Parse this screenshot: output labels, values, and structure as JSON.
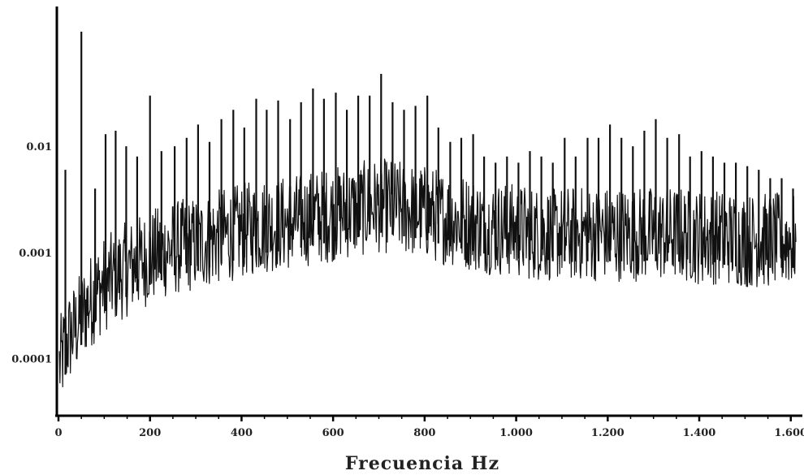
{
  "chart_data": {
    "type": "line",
    "title": "",
    "xlabel": "Frecuencia Hz",
    "ylabel": "",
    "xlim": [
      0,
      1620
    ],
    "ylim": [
      3e-05,
      0.2
    ],
    "yscale": "log",
    "grid": false,
    "xticks": [
      {
        "value": 0,
        "label": "0"
      },
      {
        "value": 200,
        "label": "200"
      },
      {
        "value": 400,
        "label": "400"
      },
      {
        "value": 600,
        "label": "600"
      },
      {
        "value": 800,
        "label": "800"
      },
      {
        "value": 1000,
        "label": "1.000"
      },
      {
        "value": 1200,
        "label": "1.200"
      },
      {
        "value": 1400,
        "label": "1.400"
      },
      {
        "value": 1600,
        "label": "1.600"
      }
    ],
    "yticks": [
      {
        "value": 0.01,
        "label": "0.01"
      },
      {
        "value": 0.001,
        "label": "0.001"
      },
      {
        "value": 0.0001,
        "label": "0.0001"
      }
    ],
    "baseline": {
      "x": [
        0,
        20,
        40,
        60,
        80,
        100,
        150,
        200,
        250,
        300,
        350,
        400,
        450,
        500,
        550,
        600,
        650,
        700,
        750,
        800,
        850,
        900,
        950,
        1000,
        1050,
        1100,
        1150,
        1200,
        1250,
        1300,
        1350,
        1400,
        1450,
        1500,
        1550,
        1600
      ],
      "y": [
        8e-05,
        0.00015,
        0.0002,
        0.0003,
        0.0004,
        0.0005,
        0.0007,
        0.0009,
        0.0011,
        0.0012,
        0.0014,
        0.0016,
        0.0018,
        0.0019,
        0.0021,
        0.0023,
        0.0025,
        0.0028,
        0.0026,
        0.0024,
        0.0021,
        0.0019,
        0.0017,
        0.0016,
        0.0015,
        0.0015,
        0.0015,
        0.0015,
        0.0015,
        0.0015,
        0.0015,
        0.0014,
        0.0014,
        0.0013,
        0.0013,
        0.0013
      ]
    },
    "peaks": {
      "x": [
        15,
        50,
        80,
        103,
        125,
        148,
        172,
        200,
        225,
        254,
        280,
        305,
        330,
        356,
        382,
        406,
        432,
        455,
        480,
        506,
        530,
        556,
        580,
        606,
        630,
        655,
        680,
        705,
        730,
        755,
        780,
        806,
        830,
        856,
        880,
        906,
        930,
        955,
        980,
        1005,
        1030,
        1055,
        1080,
        1106,
        1130,
        1156,
        1180,
        1205,
        1230,
        1255,
        1280,
        1305,
        1330,
        1356,
        1380,
        1405,
        1430,
        1455,
        1480,
        1505,
        1530,
        1555,
        1580,
        1605
      ],
      "y": [
        0.006,
        0.12,
        0.004,
        0.013,
        0.014,
        0.01,
        0.008,
        0.03,
        0.009,
        0.01,
        0.012,
        0.016,
        0.011,
        0.018,
        0.022,
        0.015,
        0.028,
        0.022,
        0.027,
        0.018,
        0.026,
        0.035,
        0.028,
        0.032,
        0.022,
        0.03,
        0.03,
        0.048,
        0.026,
        0.022,
        0.024,
        0.03,
        0.015,
        0.011,
        0.012,
        0.013,
        0.008,
        0.007,
        0.008,
        0.007,
        0.009,
        0.008,
        0.007,
        0.012,
        0.008,
        0.012,
        0.012,
        0.016,
        0.012,
        0.01,
        0.014,
        0.018,
        0.012,
        0.013,
        0.008,
        0.009,
        0.008,
        0.007,
        0.007,
        0.0065,
        0.006,
        0.005,
        0.005,
        0.004
      ]
    }
  }
}
